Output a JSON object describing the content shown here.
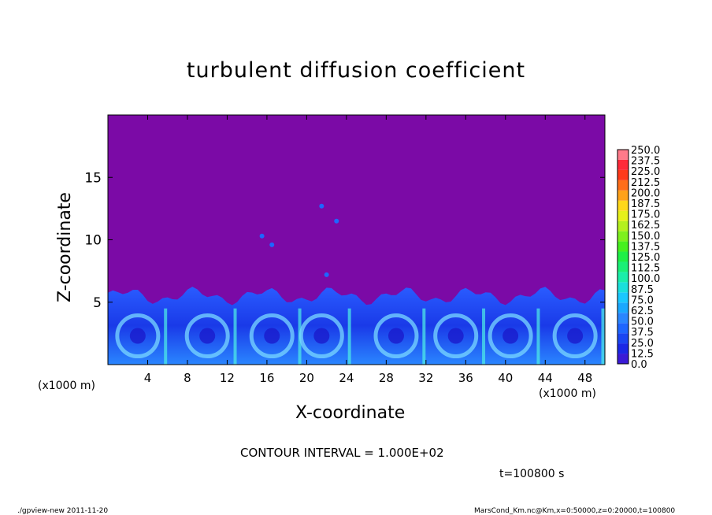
{
  "chart_data": {
    "type": "heatmap",
    "title": "turbulent diffusion coefficient",
    "xlabel": "X-coordinate",
    "ylabel": "Z-coordinate",
    "x_unit": "(x1000 m)",
    "y_unit": "(x1000 m)",
    "xlim": [
      0,
      50
    ],
    "ylim": [
      0,
      20
    ],
    "x_ticks": [
      4,
      8,
      12,
      16,
      20,
      24,
      28,
      32,
      36,
      40,
      44,
      48
    ],
    "y_ticks": [
      5,
      10,
      15
    ],
    "contour_interval": "CONTOUR INTERVAL = 1.000E+02",
    "time_label": "t=100800 s",
    "background_value": 0.0,
    "background_color": "#7b0aa6",
    "boundary_layer_top_km": 5.5,
    "colorbar": {
      "levels": [
        "0.0",
        "12.5",
        "25.0",
        "37.5",
        "50.0",
        "62.5",
        "75.0",
        "87.5",
        "100.0",
        "112.5",
        "125.0",
        "137.5",
        "150.0",
        "162.5",
        "175.0",
        "187.5",
        "200.0",
        "212.5",
        "225.0",
        "237.5",
        "250.0"
      ],
      "colors": [
        "#3a1ad6",
        "#1a28e6",
        "#1a46f2",
        "#1e66ff",
        "#2a86ff",
        "#1aa8ff",
        "#1ac8ff",
        "#1ae0dc",
        "#1aeeaa",
        "#1af076",
        "#1ef046",
        "#46f01e",
        "#7ef01e",
        "#b4f01e",
        "#e6f01a",
        "#ffd81a",
        "#ffa21a",
        "#ff6e1a",
        "#ff3a1a",
        "#ff2a3a",
        "#ff7a8a"
      ]
    }
  },
  "footer": {
    "left": "./gpview-new   2011-11-20",
    "right": "MarsCond_Km.nc@Km,x=0:50000,z=0:20000,t=100800"
  }
}
